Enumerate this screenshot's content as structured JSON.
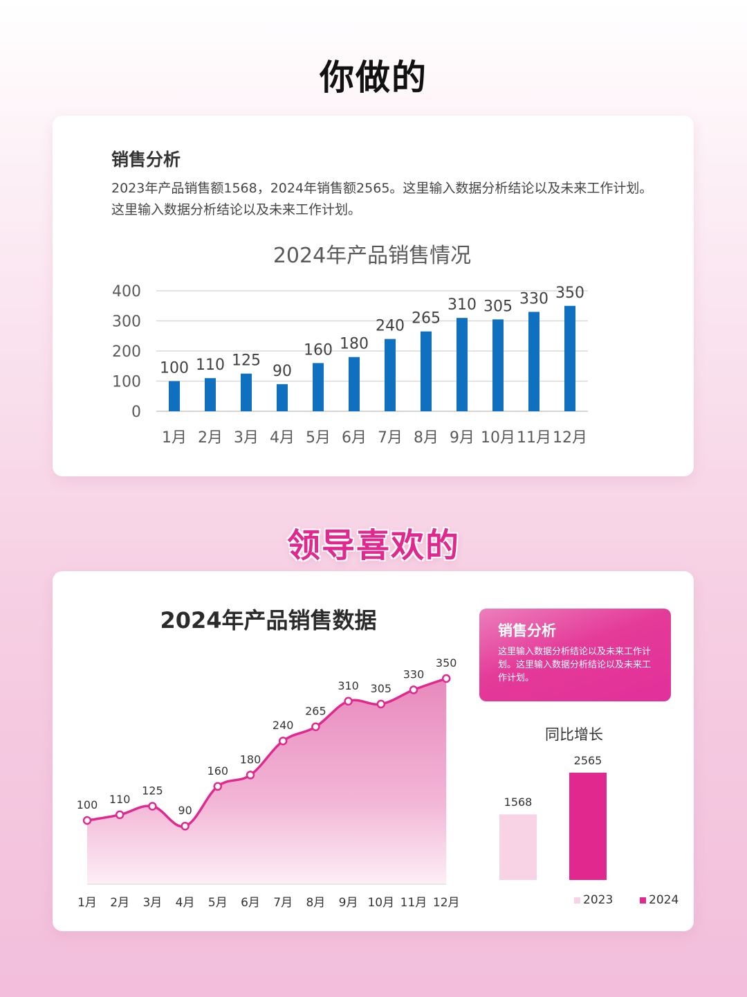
{
  "top_heading": "你做的",
  "mid_heading": "领导喜欢的",
  "card1": {
    "analysis_title": "销售分析",
    "analysis_text": "2023年产品销售额1568，2024年销售额2565。这里输入数据分析结论以及未来工作计划。这里输入数据分析结论以及未来工作计划。"
  },
  "card2": {
    "info_title": "销售分析",
    "info_text": "这里输入数据分析结论以及未来工作计划。这里输入数据分析结论以及未来工作计划。"
  },
  "colors": {
    "bar_blue": "#1070c0",
    "accent_pink": "#e0288f",
    "light_pink": "#f8d3e6"
  },
  "chart_data": [
    {
      "type": "bar",
      "title": "2024年产品销售情况",
      "categories": [
        "1月",
        "2月",
        "3月",
        "4月",
        "5月",
        "6月",
        "7月",
        "8月",
        "9月",
        "10月",
        "11月",
        "12月"
      ],
      "values": [
        100,
        110,
        125,
        90,
        160,
        180,
        240,
        265,
        310,
        305,
        330,
        350
      ],
      "ylim": [
        0,
        400
      ],
      "yticks": [
        0,
        100,
        200,
        300,
        400
      ],
      "grid": true,
      "data_labels": true
    },
    {
      "type": "area",
      "title": "2024年产品销售数据",
      "categories": [
        "1月",
        "2月",
        "3月",
        "4月",
        "5月",
        "6月",
        "7月",
        "8月",
        "9月",
        "10月",
        "11月",
        "12月"
      ],
      "values": [
        100,
        110,
        125,
        90,
        160,
        180,
        240,
        265,
        310,
        305,
        330,
        350
      ],
      "data_labels": true,
      "grid": false
    },
    {
      "type": "bar",
      "title": "同比增长",
      "categories": [
        "2023",
        "2024"
      ],
      "values": [
        1568,
        2565
      ],
      "legend": [
        "2023",
        "2024"
      ],
      "legend_position": "bottom",
      "data_labels": true
    }
  ]
}
